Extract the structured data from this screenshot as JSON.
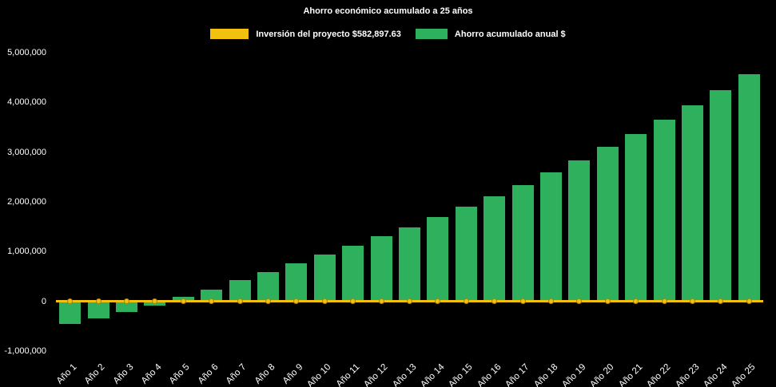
{
  "chart_data": {
    "type": "bar",
    "title": "Ahorro económico acumulado a 25 años",
    "categories": [
      "Año 1",
      "Año 2",
      "Año 3",
      "Año 4",
      "Año 5",
      "Año 6",
      "Año 7",
      "Año 8",
      "Año 9",
      "Año 10",
      "Año 11",
      "Año 12",
      "Año 13",
      "Año 14",
      "Año 15",
      "Año 16",
      "Año 17",
      "Año 18",
      "Año 19",
      "Año 20",
      "Año 21",
      "Año 22",
      "Año 23",
      "Año 24",
      "Año 25"
    ],
    "series": [
      {
        "name": "Ahorro acumulado anual $",
        "type": "bar",
        "color": "#2EB05C",
        "values": [
          -450000,
          -340000,
          -220000,
          -80000,
          90000,
          240000,
          420000,
          590000,
          760000,
          940000,
          1120000,
          1310000,
          1490000,
          1690000,
          1900000,
          2110000,
          2340000,
          2590000,
          2840000,
          3100000,
          3370000,
          3650000,
          3940000,
          4250000,
          4570000
        ]
      },
      {
        "name": "Inversión del proyecto $582,897.63",
        "type": "line",
        "color": "#F2C00E",
        "plotted_at": 0,
        "values": [
          0,
          0,
          0,
          0,
          0,
          0,
          0,
          0,
          0,
          0,
          0,
          0,
          0,
          0,
          0,
          0,
          0,
          0,
          0,
          0,
          0,
          0,
          0,
          0,
          0
        ]
      }
    ],
    "xlabel": "",
    "ylabel": "",
    "ylim": [
      -1000000,
      5000000
    ],
    "yticks": [
      5000000,
      4000000,
      3000000,
      2000000,
      1000000,
      0,
      -1000000
    ],
    "grid": false,
    "legend_position": "top",
    "background": "#000000",
    "text_color": "#FFFFFF"
  },
  "legend": {
    "investment_label": "Inversión del proyecto $582,897.63",
    "savings_label": "Ahorro acumulado anual $"
  }
}
